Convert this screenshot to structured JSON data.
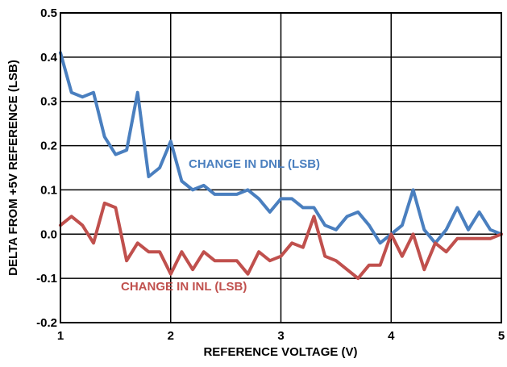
{
  "chart_data": {
    "type": "line",
    "xlabel": "REFERENCE VOLTAGE (V)",
    "ylabel": "DELTA FROM +5V REFERENCE (LSB)",
    "xlim": [
      1,
      5
    ],
    "ylim": [
      -0.2,
      0.5
    ],
    "grid": true,
    "x_ticks": [
      "1",
      "2",
      "3",
      "4",
      "5"
    ],
    "y_ticks": [
      "-0.2",
      "-0.1",
      "0.0",
      "0.1",
      "0.2",
      "0.3",
      "0.4",
      "0.5"
    ],
    "series": [
      {
        "name": "CHANGE IN DNL (LSB)",
        "color": "#4a7fbf",
        "x": [
          1.0,
          1.1,
          1.2,
          1.3,
          1.4,
          1.5,
          1.6,
          1.7,
          1.8,
          1.9,
          2.0,
          2.1,
          2.2,
          2.3,
          2.4,
          2.5,
          2.6,
          2.7,
          2.8,
          2.9,
          3.0,
          3.1,
          3.2,
          3.3,
          3.4,
          3.5,
          3.6,
          3.7,
          3.8,
          3.9,
          4.0,
          4.1,
          4.2,
          4.3,
          4.4,
          4.5,
          4.6,
          4.7,
          4.8,
          4.9,
          5.0
        ],
        "values": [
          0.41,
          0.32,
          0.31,
          0.32,
          0.22,
          0.18,
          0.19,
          0.32,
          0.13,
          0.15,
          0.21,
          0.12,
          0.1,
          0.11,
          0.09,
          0.09,
          0.09,
          0.1,
          0.08,
          0.05,
          0.08,
          0.08,
          0.06,
          0.06,
          0.02,
          0.01,
          0.04,
          0.05,
          0.02,
          -0.02,
          0.0,
          0.02,
          0.1,
          0.01,
          -0.02,
          0.01,
          0.06,
          0.01,
          0.05,
          0.01,
          0.0
        ]
      },
      {
        "name": "CHANGE IN INL (LSB)",
        "color": "#c0504d",
        "x": [
          1.0,
          1.1,
          1.2,
          1.3,
          1.4,
          1.5,
          1.6,
          1.7,
          1.8,
          1.9,
          2.0,
          2.1,
          2.2,
          2.3,
          2.4,
          2.5,
          2.6,
          2.7,
          2.8,
          2.9,
          3.0,
          3.1,
          3.2,
          3.3,
          3.4,
          3.5,
          3.6,
          3.7,
          3.8,
          3.9,
          4.0,
          4.1,
          4.2,
          4.3,
          4.4,
          4.5,
          4.6,
          4.7,
          4.8,
          4.9,
          5.0
        ],
        "values": [
          0.02,
          0.04,
          0.02,
          -0.02,
          0.07,
          0.06,
          -0.06,
          -0.02,
          -0.04,
          -0.04,
          -0.09,
          -0.04,
          -0.08,
          -0.04,
          -0.06,
          -0.06,
          -0.06,
          -0.09,
          -0.04,
          -0.06,
          -0.05,
          -0.02,
          -0.03,
          0.04,
          -0.05,
          -0.06,
          -0.08,
          -0.1,
          -0.07,
          -0.07,
          0.0,
          -0.05,
          0.0,
          -0.08,
          -0.02,
          -0.04,
          -0.01,
          -0.01,
          -0.01,
          -0.01,
          0.0
        ]
      }
    ]
  }
}
